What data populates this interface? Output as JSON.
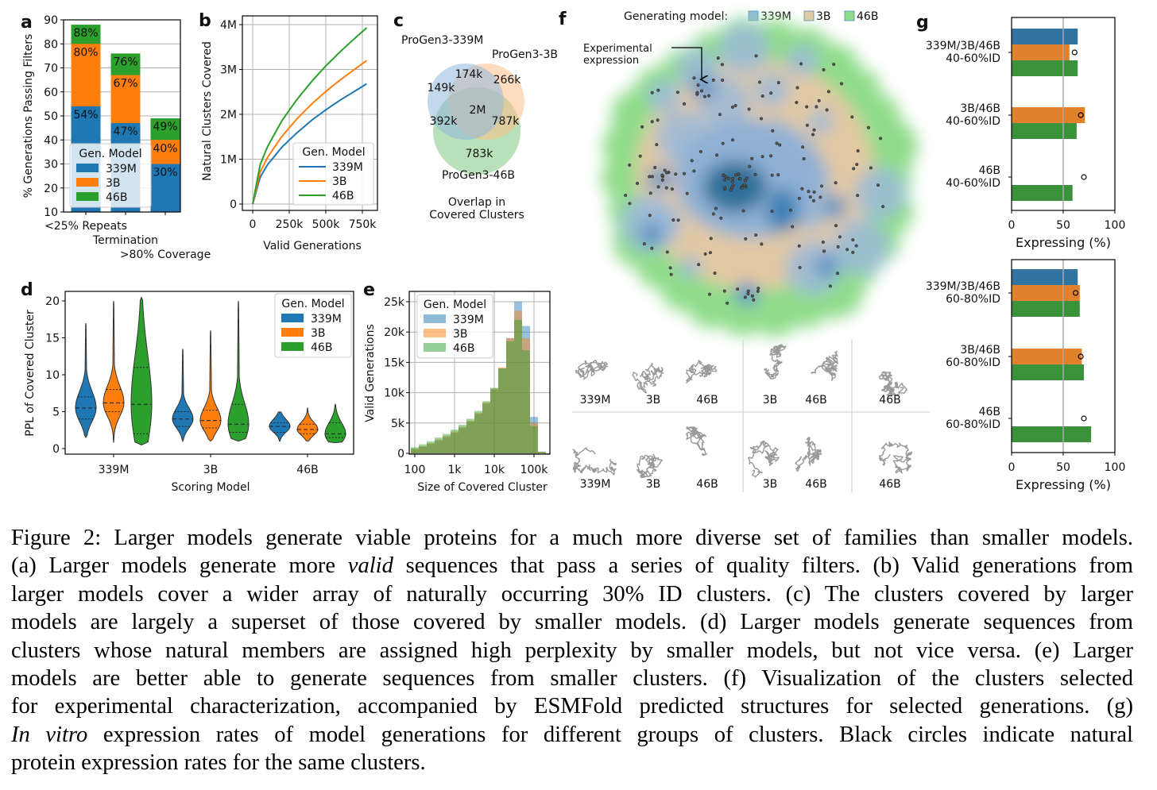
{
  "panel_letters": [
    "a",
    "b",
    "c",
    "d",
    "e",
    "f",
    "g"
  ],
  "colors": {
    "339M": "#1f77b4",
    "3B": "#ff7f0e",
    "46B": "#2ca02c",
    "g_339M": "#3274a1",
    "g_3B": "#e1812c",
    "g_46B": "#3a923a",
    "tan": "#e3c9a3",
    "lightgreen": "#8fdc8a",
    "density_blue": "#4a86c0"
  },
  "chart_data": [
    {
      "id": "a",
      "type": "bar",
      "ylabel": "% Generations Passing Filters",
      "ylim": [
        10,
        90
      ],
      "yticks": [
        10,
        20,
        30,
        40,
        50,
        60,
        70,
        80,
        90
      ],
      "grid": true,
      "categories": [
        "<25% Repeats",
        "Termination",
        ">80% Coverage"
      ],
      "series": [
        {
          "name": "339M",
          "values": [
            54,
            47,
            30
          ]
        },
        {
          "name": "3B",
          "values": [
            80,
            67,
            40
          ]
        },
        {
          "name": "46B",
          "values": [
            88,
            76,
            49
          ]
        }
      ],
      "legend_title": "Gen. Model",
      "legend": "lower-left"
    },
    {
      "id": "b",
      "type": "line",
      "xlabel": "Valid Generations",
      "ylabel": "Natural Clusters Covered",
      "grid": true,
      "xticks": [
        0,
        250,
        500,
        750
      ],
      "xtick_labels": [
        "0",
        "250k",
        "500k",
        "750k"
      ],
      "yticks": [
        0,
        1,
        2,
        3,
        4
      ],
      "ytick_labels": [
        "0",
        "1M",
        "2M",
        "3M",
        "4M"
      ],
      "x": [
        0,
        50,
        100,
        200,
        300,
        400,
        500,
        600,
        700,
        780
      ],
      "series": [
        {
          "name": "339M",
          "values": [
            0,
            0.59,
            0.87,
            1.27,
            1.58,
            1.86,
            2.1,
            2.32,
            2.52,
            2.68
          ]
        },
        {
          "name": "3B",
          "values": [
            0,
            0.71,
            1.03,
            1.51,
            1.89,
            2.22,
            2.51,
            2.77,
            3.01,
            3.2
          ]
        },
        {
          "name": "46B",
          "values": [
            0,
            0.87,
            1.27,
            1.86,
            2.32,
            2.72,
            3.08,
            3.4,
            3.7,
            3.93
          ]
        }
      ],
      "legend_title": "Gen. Model",
      "legend": "lower-right"
    },
    {
      "id": "c",
      "type": "venn",
      "sets": [
        "ProGen3-339M",
        "ProGen3-3B",
        "ProGen3-46B"
      ],
      "regions": {
        "339M_only": "149k",
        "3B_only": "266k",
        "46B_only": "783k",
        "339M_3B": "174k",
        "339M_46B": "392k",
        "3B_46B": "787k",
        "all": "2M"
      },
      "title": [
        "Overlap in",
        "Covered Clusters"
      ]
    },
    {
      "id": "d",
      "type": "violin",
      "xlabel": "Scoring Model",
      "ylabel": "PPL of Covered Cluster",
      "yticks": [
        0,
        5,
        10,
        15,
        20
      ],
      "categories": [
        "339M",
        "3B",
        "46B"
      ],
      "legend_title": "Gen. Model",
      "legend": "upper-right",
      "series": [
        {
          "name": "339M",
          "stats": [
            {
              "min": 1.5,
              "q1": 4,
              "median": 5.5,
              "q3": 7,
              "max": 17
            },
            {
              "min": 1,
              "q1": 3,
              "median": 4,
              "q3": 5,
              "max": 13.5
            },
            {
              "min": 1,
              "q1": 2.2,
              "median": 3,
              "q3": 3.5,
              "max": 5
            }
          ]
        },
        {
          "name": "3B",
          "stats": [
            {
              "min": 0.8,
              "q1": 5,
              "median": 6.2,
              "q3": 8,
              "max": 20
            },
            {
              "min": 1,
              "q1": 2.8,
              "median": 3.8,
              "q3": 5.2,
              "max": 16
            },
            {
              "min": 1,
              "q1": 2,
              "median": 2.6,
              "q3": 3.3,
              "max": 5.5
            }
          ]
        },
        {
          "name": "46B",
          "stats": [
            {
              "min": 0.5,
              "q1": 2,
              "median": 6,
              "q3": 11,
              "max": 20.5
            },
            {
              "min": 1,
              "q1": 2.2,
              "median": 3.3,
              "q3": 6,
              "max": 20
            },
            {
              "min": 0.8,
              "q1": 1.5,
              "median": 2,
              "q3": 3.5,
              "max": 6
            }
          ]
        }
      ]
    },
    {
      "id": "e",
      "type": "histogram",
      "xlabel": "Size of Covered Cluster",
      "ylabel": "Valid Generations",
      "xscale": "log",
      "xticks": [
        100,
        1000,
        10000,
        100000
      ],
      "xtick_labels": [
        "100",
        "1k",
        "10k",
        "100k"
      ],
      "yticks": [
        0,
        5000,
        10000,
        15000,
        20000,
        25000
      ],
      "ytick_labels": [
        "0",
        "5k",
        "10k",
        "15k",
        "20k",
        "25k"
      ],
      "bin_centers": [
        100,
        158,
        251,
        398,
        631,
        1000,
        1585,
        2512,
        3981,
        6310,
        10000,
        15849,
        25119,
        39811,
        63096,
        100000,
        158489
      ],
      "series": [
        {
          "name": "339M",
          "values": [
            700,
            1100,
            1600,
            2100,
            2700,
            3400,
            4200,
            5200,
            6500,
            8200,
            10500,
            14000,
            19000,
            25000,
            21000,
            6000,
            300
          ]
        },
        {
          "name": "3B",
          "values": [
            800,
            1200,
            1700,
            2300,
            2900,
            3600,
            4400,
            5400,
            6700,
            8400,
            10700,
            14200,
            19000,
            23500,
            19000,
            5000,
            250
          ]
        },
        {
          "name": "46B",
          "values": [
            1000,
            1500,
            2000,
            2600,
            3200,
            3900,
            4700,
            5700,
            7000,
            8600,
            10800,
            14000,
            18500,
            22000,
            17000,
            4500,
            200
          ]
        }
      ],
      "legend_title": "Gen. Model",
      "legend": "upper-left"
    },
    {
      "id": "g_top",
      "type": "barh",
      "xlabel": "Expressing (%)",
      "xticks": [
        0,
        50,
        100
      ],
      "xlim": [
        0,
        100
      ],
      "reference_line": 50,
      "groups": [
        {
          "label": [
            "339M/3B/46B",
            "40-60%ID"
          ],
          "bars": {
            "339M": 64,
            "3B": 56,
            "46B": 64
          },
          "natural": 61
        },
        {
          "label": [
            "3B/46B",
            "40-60%ID"
          ],
          "bars": {
            "3B": 71,
            "46B": 63
          },
          "natural": 67
        },
        {
          "label": [
            "46B",
            "40-60%ID"
          ],
          "bars": {
            "46B": 59
          },
          "natural": 70
        }
      ]
    },
    {
      "id": "g_bottom",
      "type": "barh",
      "xlabel": "Expressing (%)",
      "xticks": [
        0,
        50,
        100
      ],
      "xlim": [
        0,
        100
      ],
      "reference_line": 50,
      "groups": [
        {
          "label": [
            "339M/3B/46B",
            "60-80%ID"
          ],
          "bars": {
            "339M": 64,
            "3B": 66,
            "46B": 66
          },
          "natural": 62
        },
        {
          "label": [
            "3B/46B",
            "60-80%ID"
          ],
          "bars": {
            "3B": 68,
            "46B": 70
          },
          "natural": 67
        },
        {
          "label": [
            "46B",
            "60-80%ID"
          ],
          "bars": {
            "46B": 77
          },
          "natural": 70
        }
      ]
    }
  ],
  "panel_f": {
    "legend_title": "Generating model:",
    "legend": [
      "339M",
      "3B",
      "46B"
    ],
    "annotation": [
      "Experimental",
      "expression"
    ],
    "structure_labels_row1": [
      "339M",
      "3B",
      "46B",
      "3B",
      "46B",
      "46B"
    ],
    "structure_labels_row2": [
      "339M",
      "3B",
      "46B",
      "3B",
      "46B",
      "46B"
    ]
  },
  "caption": {
    "lines": [
      [
        {
          "t": "Figure 2: Larger models generate viable proteins for a much more diverse set of families than smaller models."
        }
      ],
      [
        {
          "t": "(a) Larger models generate more "
        },
        {
          "t": "valid",
          "i": true
        },
        {
          "t": " sequences that pass a series of quality filters. (b) Valid generations from"
        }
      ],
      [
        {
          "t": "larger models cover a wider array of naturally occurring 30% ID clusters.  (c) The clusters covered by larger"
        }
      ],
      [
        {
          "t": "models are largely a superset of those covered by smaller models.  (d) Larger models generate sequences from"
        }
      ],
      [
        {
          "t": "clusters whose natural members are assigned high perplexity by smaller models, but not vice versa. (e) Larger"
        }
      ],
      [
        {
          "t": "models are better able to generate sequences from smaller clusters.  (f) Visualization of the clusters selected"
        }
      ],
      [
        {
          "t": "for experimental characterization, accompanied by ESMFold predicted structures for selected generations. (g)"
        }
      ],
      [
        {
          "t": "In vitro",
          "i": true
        },
        {
          "t": " expression rates of model generations for different groups of clusters.  Black circles indicate natural"
        }
      ],
      [
        {
          "t": "protein expression rates for the same clusters."
        }
      ]
    ]
  }
}
